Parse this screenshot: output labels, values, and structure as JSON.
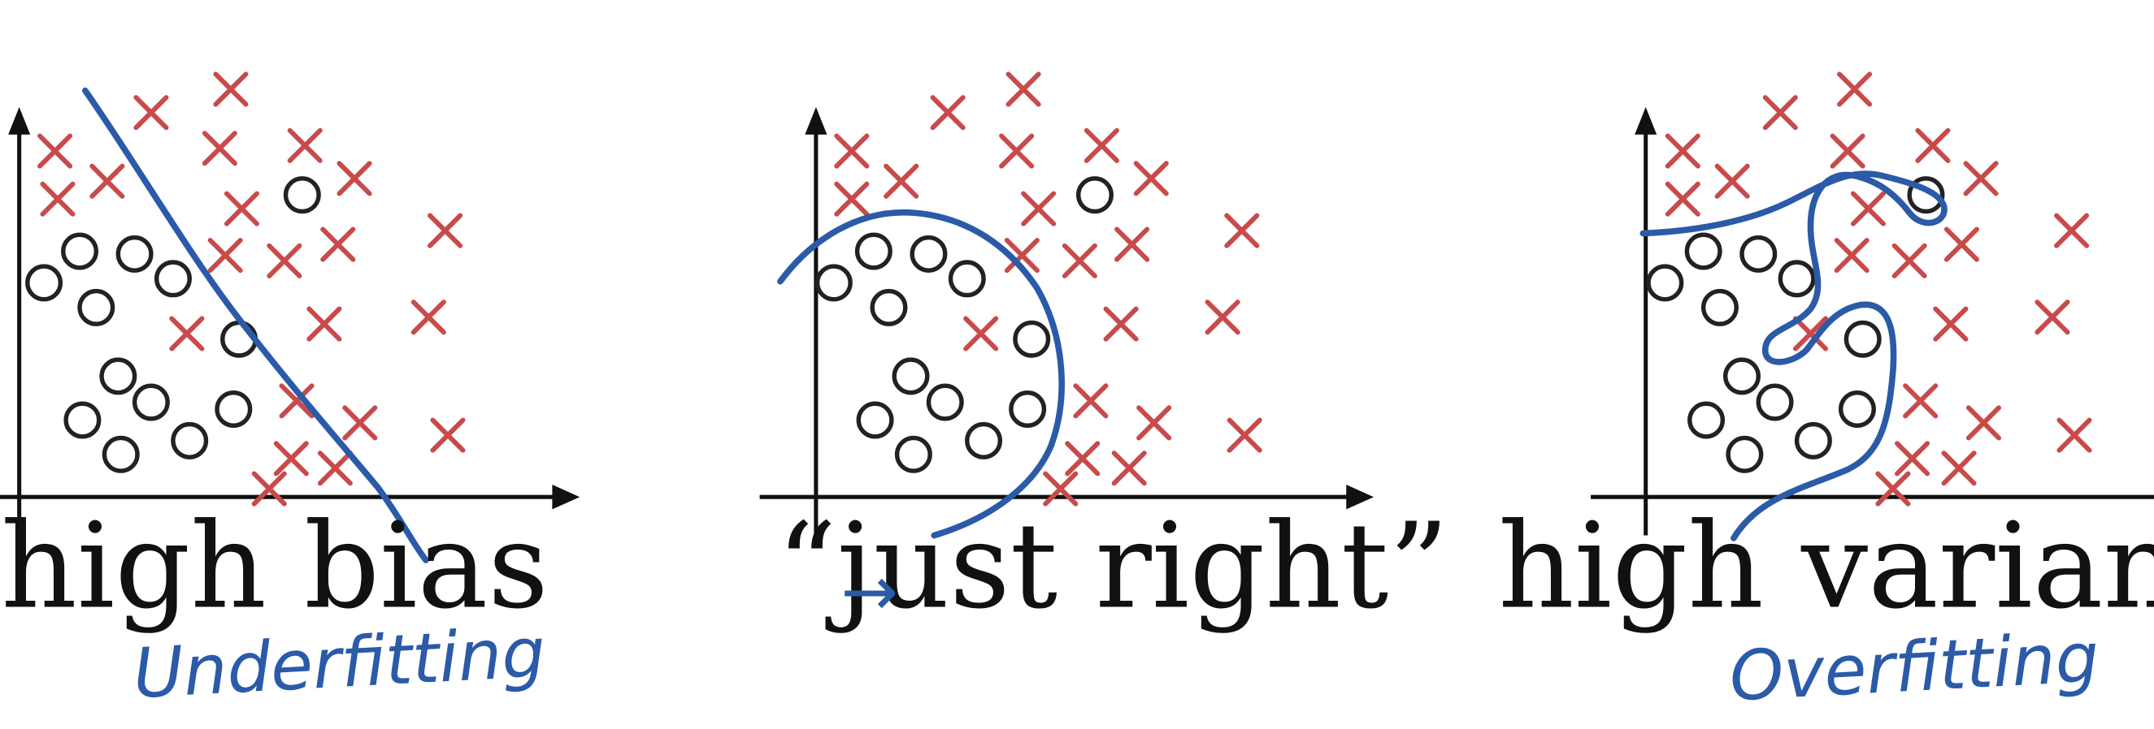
{
  "colors": {
    "cross": "#c84a4a",
    "circle": "#222222",
    "boundary": "#2b5aa8",
    "axis": "#111111",
    "handwriting": "#2b5aa8"
  },
  "panels": [
    {
      "title": "high bias",
      "note": "Underfitting",
      "note_prefix": "",
      "crosses": [
        [
          40,
          110
        ],
        [
          110,
          82
        ],
        [
          168,
          65
        ],
        [
          42,
          145
        ],
        [
          78,
          132
        ],
        [
          160,
          108
        ],
        [
          222,
          106
        ],
        [
          176,
          152
        ],
        [
          258,
          130
        ],
        [
          164,
          186
        ],
        [
          207,
          190
        ],
        [
          246,
          178
        ],
        [
          324,
          168
        ],
        [
          136,
          243
        ],
        [
          236,
          236
        ],
        [
          312,
          231
        ],
        [
          216,
          292
        ],
        [
          262,
          308
        ],
        [
          326,
          317
        ],
        [
          212,
          334
        ],
        [
          244,
          341
        ],
        [
          196,
          356
        ]
      ],
      "circles": [
        [
          32,
          206
        ],
        [
          58,
          183
        ],
        [
          98,
          185
        ],
        [
          126,
          203
        ],
        [
          70,
          224
        ],
        [
          174,
          247
        ],
        [
          86,
          274
        ],
        [
          110,
          293
        ],
        [
          60,
          306
        ],
        [
          88,
          331
        ],
        [
          138,
          321
        ],
        [
          170,
          298
        ],
        [
          220,
          142
        ]
      ]
    },
    {
      "title": "“just right”",
      "note": "",
      "note_prefix": "→",
      "crosses": [
        [
          620,
          110
        ],
        [
          690,
          82
        ],
        [
          745,
          65
        ],
        [
          620,
          145
        ],
        [
          656,
          132
        ],
        [
          740,
          110
        ],
        [
          802,
          106
        ],
        [
          756,
          152
        ],
        [
          838,
          130
        ],
        [
          744,
          186
        ],
        [
          786,
          190
        ],
        [
          824,
          178
        ],
        [
          904,
          168
        ],
        [
          714,
          243
        ],
        [
          816,
          236
        ],
        [
          890,
          231
        ],
        [
          794,
          292
        ],
        [
          840,
          308
        ],
        [
          906,
          317
        ],
        [
          788,
          334
        ],
        [
          822,
          341
        ],
        [
          772,
          356
        ]
      ],
      "circles": [
        [
          607,
          206
        ],
        [
          636,
          183
        ],
        [
          676,
          185
        ],
        [
          704,
          203
        ],
        [
          647,
          224
        ],
        [
          751,
          247
        ],
        [
          663,
          274
        ],
        [
          688,
          293
        ],
        [
          637,
          306
        ],
        [
          665,
          331
        ],
        [
          716,
          321
        ],
        [
          748,
          298
        ],
        [
          797,
          142
        ]
      ]
    },
    {
      "title": "high variance",
      "note": "Overfitting",
      "note_prefix": "",
      "crosses": [
        [
          1225,
          110
        ],
        [
          1296,
          82
        ],
        [
          1350,
          65
        ],
        [
          1225,
          145
        ],
        [
          1261,
          132
        ],
        [
          1345,
          110
        ],
        [
          1407,
          106
        ],
        [
          1360,
          152
        ],
        [
          1442,
          130
        ],
        [
          1348,
          186
        ],
        [
          1390,
          190
        ],
        [
          1428,
          178
        ],
        [
          1508,
          168
        ],
        [
          1318,
          243
        ],
        [
          1420,
          236
        ],
        [
          1494,
          231
        ],
        [
          1398,
          292
        ],
        [
          1444,
          308
        ],
        [
          1510,
          317
        ],
        [
          1392,
          334
        ],
        [
          1426,
          341
        ],
        [
          1378,
          356
        ]
      ],
      "circles": [
        [
          1212,
          206
        ],
        [
          1240,
          183
        ],
        [
          1280,
          185
        ],
        [
          1308,
          203
        ],
        [
          1252,
          224
        ],
        [
          1356,
          247
        ],
        [
          1268,
          274
        ],
        [
          1292,
          293
        ],
        [
          1242,
          306
        ],
        [
          1270,
          331
        ],
        [
          1320,
          321
        ],
        [
          1352,
          298
        ],
        [
          1402,
          142
        ]
      ]
    }
  ]
}
